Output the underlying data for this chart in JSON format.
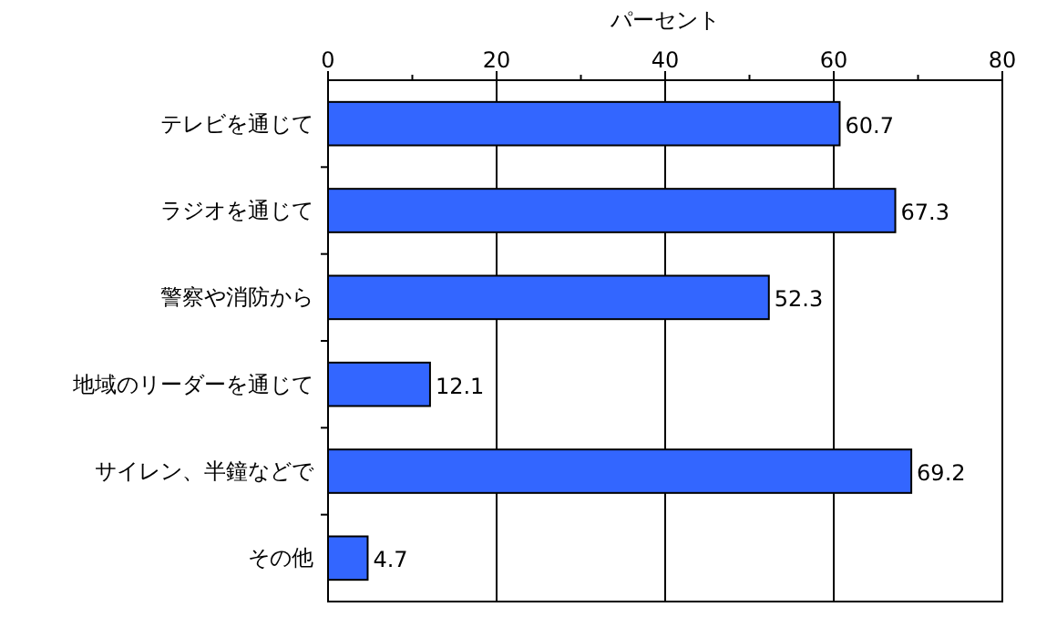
{
  "chart_data": {
    "type": "bar",
    "orientation": "horizontal",
    "xlabel": "パーセント",
    "categories": [
      "テレビを通じて",
      "ラジオを通じて",
      "警察や消防から",
      "地域のリーダーを通じて",
      "サイレン、半鐘などで",
      "その他"
    ],
    "values": [
      60.7,
      67.3,
      52.3,
      12.1,
      69.2,
      4.7
    ],
    "color": "#3366ff",
    "xlim": [
      0,
      80
    ],
    "xticks": [
      0,
      20,
      40,
      60,
      80
    ],
    "grid": "x",
    "data_labels": true
  }
}
